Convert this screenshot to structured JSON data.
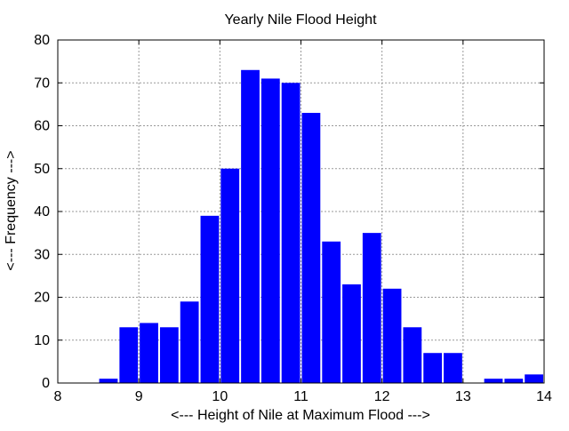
{
  "chart_data": {
    "type": "bar",
    "title": "Yearly Nile Flood Height",
    "xlabel": "<--- Height of Nile at Maximum Flood --->",
    "ylabel": "<--- Frequency --->",
    "xlim": [
      8,
      14
    ],
    "ylim": [
      0,
      80
    ],
    "xticks": [
      "8",
      "9",
      "10",
      "11",
      "12",
      "13",
      "14"
    ],
    "yticks": [
      "0",
      "10",
      "20",
      "30",
      "40",
      "50",
      "60",
      "70",
      "80"
    ],
    "grid": true,
    "bar_color": "#0000ff",
    "bin_width": 0.25,
    "bins": [
      {
        "x": 8.625,
        "value": 1
      },
      {
        "x": 8.875,
        "value": 13
      },
      {
        "x": 9.125,
        "value": 14
      },
      {
        "x": 9.375,
        "value": 13
      },
      {
        "x": 9.625,
        "value": 19
      },
      {
        "x": 9.875,
        "value": 39
      },
      {
        "x": 10.125,
        "value": 50
      },
      {
        "x": 10.375,
        "value": 73
      },
      {
        "x": 10.625,
        "value": 71
      },
      {
        "x": 10.875,
        "value": 70
      },
      {
        "x": 11.125,
        "value": 63
      },
      {
        "x": 11.375,
        "value": 33
      },
      {
        "x": 11.625,
        "value": 23
      },
      {
        "x": 11.875,
        "value": 35
      },
      {
        "x": 12.125,
        "value": 22
      },
      {
        "x": 12.375,
        "value": 13
      },
      {
        "x": 12.625,
        "value": 7
      },
      {
        "x": 12.875,
        "value": 7
      },
      {
        "x": 13.375,
        "value": 1
      },
      {
        "x": 13.625,
        "value": 1
      },
      {
        "x": 13.875,
        "value": 2
      }
    ]
  }
}
